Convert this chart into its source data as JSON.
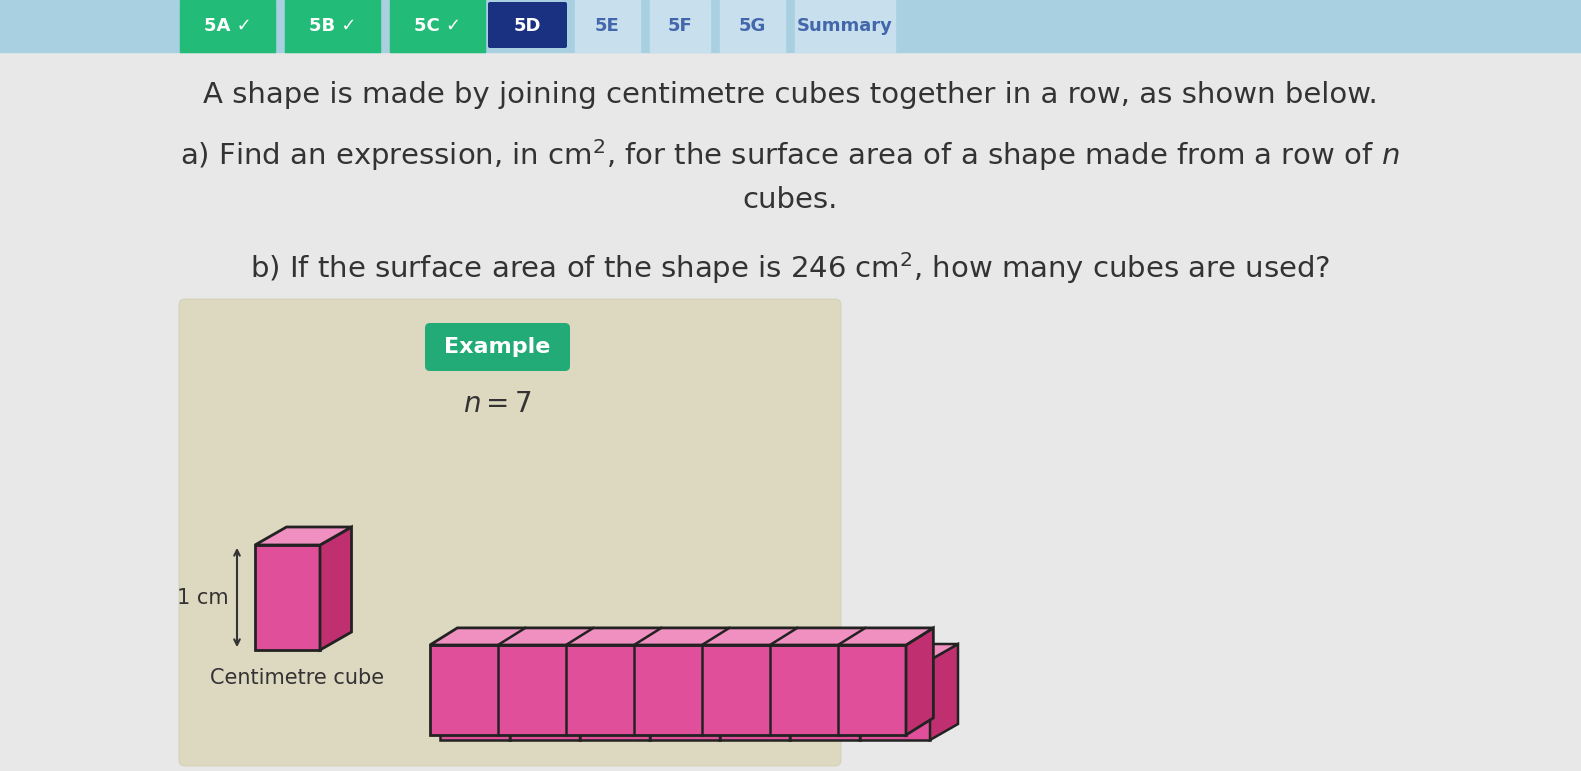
{
  "bg_color": "#d8d8d8",
  "content_bg": "#e8e8e8",
  "top_bar_color": "#a8d0e0",
  "tabs": [
    {
      "label": "5A ✓",
      "color": "#22bb77",
      "text_color": "white",
      "active": false
    },
    {
      "label": "5B ✓",
      "color": "#22bb77",
      "text_color": "white",
      "active": false
    },
    {
      "label": "5C ✓",
      "color": "#22bb77",
      "text_color": "white",
      "active": false
    },
    {
      "label": "5D",
      "color": "#1a3080",
      "text_color": "white",
      "active": true
    },
    {
      "label": "5E",
      "color": "#c8e0ee",
      "text_color": "#4466aa",
      "active": false
    },
    {
      "label": "5F",
      "color": "#c8e0ee",
      "text_color": "#4466aa",
      "active": false
    },
    {
      "label": "5G",
      "color": "#c8e0ee",
      "text_color": "#4466aa",
      "active": false
    },
    {
      "label": "Summary",
      "color": "#c8e0ee",
      "text_color": "#4466aa",
      "active": false
    }
  ],
  "line1": "A shape is made by joining centimetre cubes together in a row, as shown below.",
  "line2": "a) Find an expression, in cm$^2$, for the surface area of a shape made from a row of $n$",
  "line2b": "cubes.",
  "line3": "b) If the surface area of the shape is 246 cm$^2$, how many cubes are used?",
  "example_label": "Example",
  "example_color": "#22aa77",
  "n_label": "$n = 7$",
  "cube_label": "1 cm",
  "centimetre_label": "Centimetre cube",
  "cube_front": "#e0509a",
  "cube_side": "#c03070",
  "cube_top": "#f090c0",
  "text_color": "#333333",
  "illus_bg": "#ddd8c0",
  "n_cubes": 7
}
